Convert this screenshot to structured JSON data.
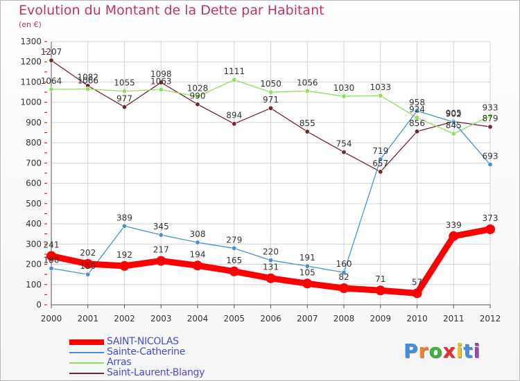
{
  "chart_data": {
    "type": "line",
    "title": "Evolution du Montant de la Dette par Habitant",
    "subtitle": "(en €)",
    "x": [
      "2000",
      "2001",
      "2002",
      "2003",
      "2004",
      "2005",
      "2006",
      "2007",
      "2008",
      "2009",
      "2010",
      "2011",
      "2012"
    ],
    "ylim": [
      0,
      1300
    ],
    "yticks": [
      0,
      100,
      200,
      300,
      400,
      500,
      600,
      700,
      800,
      900,
      1000,
      1100,
      1200,
      1300
    ],
    "grid": true,
    "legend_position": "bottom-left",
    "series": [
      {
        "name": "SAINT-NICOLAS",
        "color": "#ff0000",
        "values": [
          241,
          202,
          192,
          217,
          194,
          165,
          131,
          105,
          82,
          71,
          57,
          339,
          373
        ]
      },
      {
        "name": "Sainte-Catherine",
        "color": "#4a8fd0",
        "values": [
          180,
          150,
          389,
          345,
          308,
          279,
          220,
          191,
          160,
          719,
          958,
          902,
          693
        ]
      },
      {
        "name": "Arras",
        "color": "#90dd60",
        "values": [
          1064,
          1066,
          1055,
          1063,
          1028,
          1111,
          1050,
          1056,
          1030,
          1033,
          924,
          845,
          933
        ]
      },
      {
        "name": "Saint-Laurent-Blangy",
        "color": "#702830",
        "values": [
          1207,
          1082,
          977,
          1098,
          990,
          894,
          971,
          855,
          754,
          657,
          856,
          905,
          879
        ]
      }
    ]
  },
  "logo": {
    "letters": [
      "P",
      "r",
      "o",
      "x",
      "i",
      "t",
      "i"
    ],
    "colors": [
      "#3f8ee0",
      "#f08020",
      "#40b040",
      "#e03030",
      "#f0c020",
      "#3f8ee0",
      "#a040c0"
    ]
  }
}
